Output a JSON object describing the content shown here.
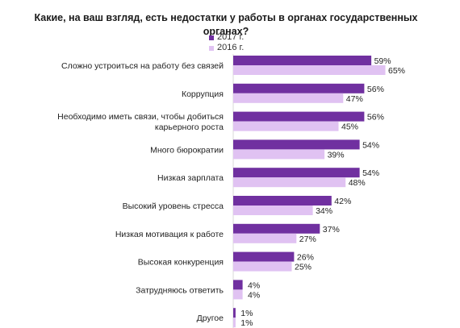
{
  "chart_data": {
    "type": "bar",
    "orientation": "horizontal",
    "title": "Какие,  на ваш взгляд, есть недостатки у работы в органах государственных органах?",
    "categories": [
      [
        "Сложно устроиться на работу без связей"
      ],
      [
        "Коррупция"
      ],
      [
        "Необходимо иметь связи, чтобы добиться",
        "карьерного роста"
      ],
      [
        "Много бюрократии"
      ],
      [
        "Низкая зарплата"
      ],
      [
        "Высокий уровень стресса"
      ],
      [
        "Низкая мотивация к работе"
      ],
      [
        "Высокая конкуренция"
      ],
      [
        "Затрудняюсь ответить"
      ],
      [
        "Другое"
      ]
    ],
    "series": [
      {
        "name": "2017 г.",
        "color": "#7030a0",
        "values": [
          59,
          56,
          56,
          54,
          54,
          42,
          37,
          26,
          4,
          1
        ],
        "labels": [
          "59%",
          "56%",
          "56%",
          "54%",
          "54%",
          "42%",
          "37%",
          "26%",
          "4%",
          "1%"
        ]
      },
      {
        "name": "2016 г.",
        "color": "#e0c2f2",
        "values": [
          65,
          47,
          45,
          39,
          48,
          34,
          27,
          25,
          4,
          1
        ],
        "labels": [
          "65%",
          "47%",
          "45%",
          "39%",
          "48%",
          "34%",
          "27%",
          "25%",
          "4%",
          "1%"
        ]
      }
    ],
    "xlim": [
      0,
      100
    ],
    "legend_position": "top-right",
    "grid": false
  }
}
